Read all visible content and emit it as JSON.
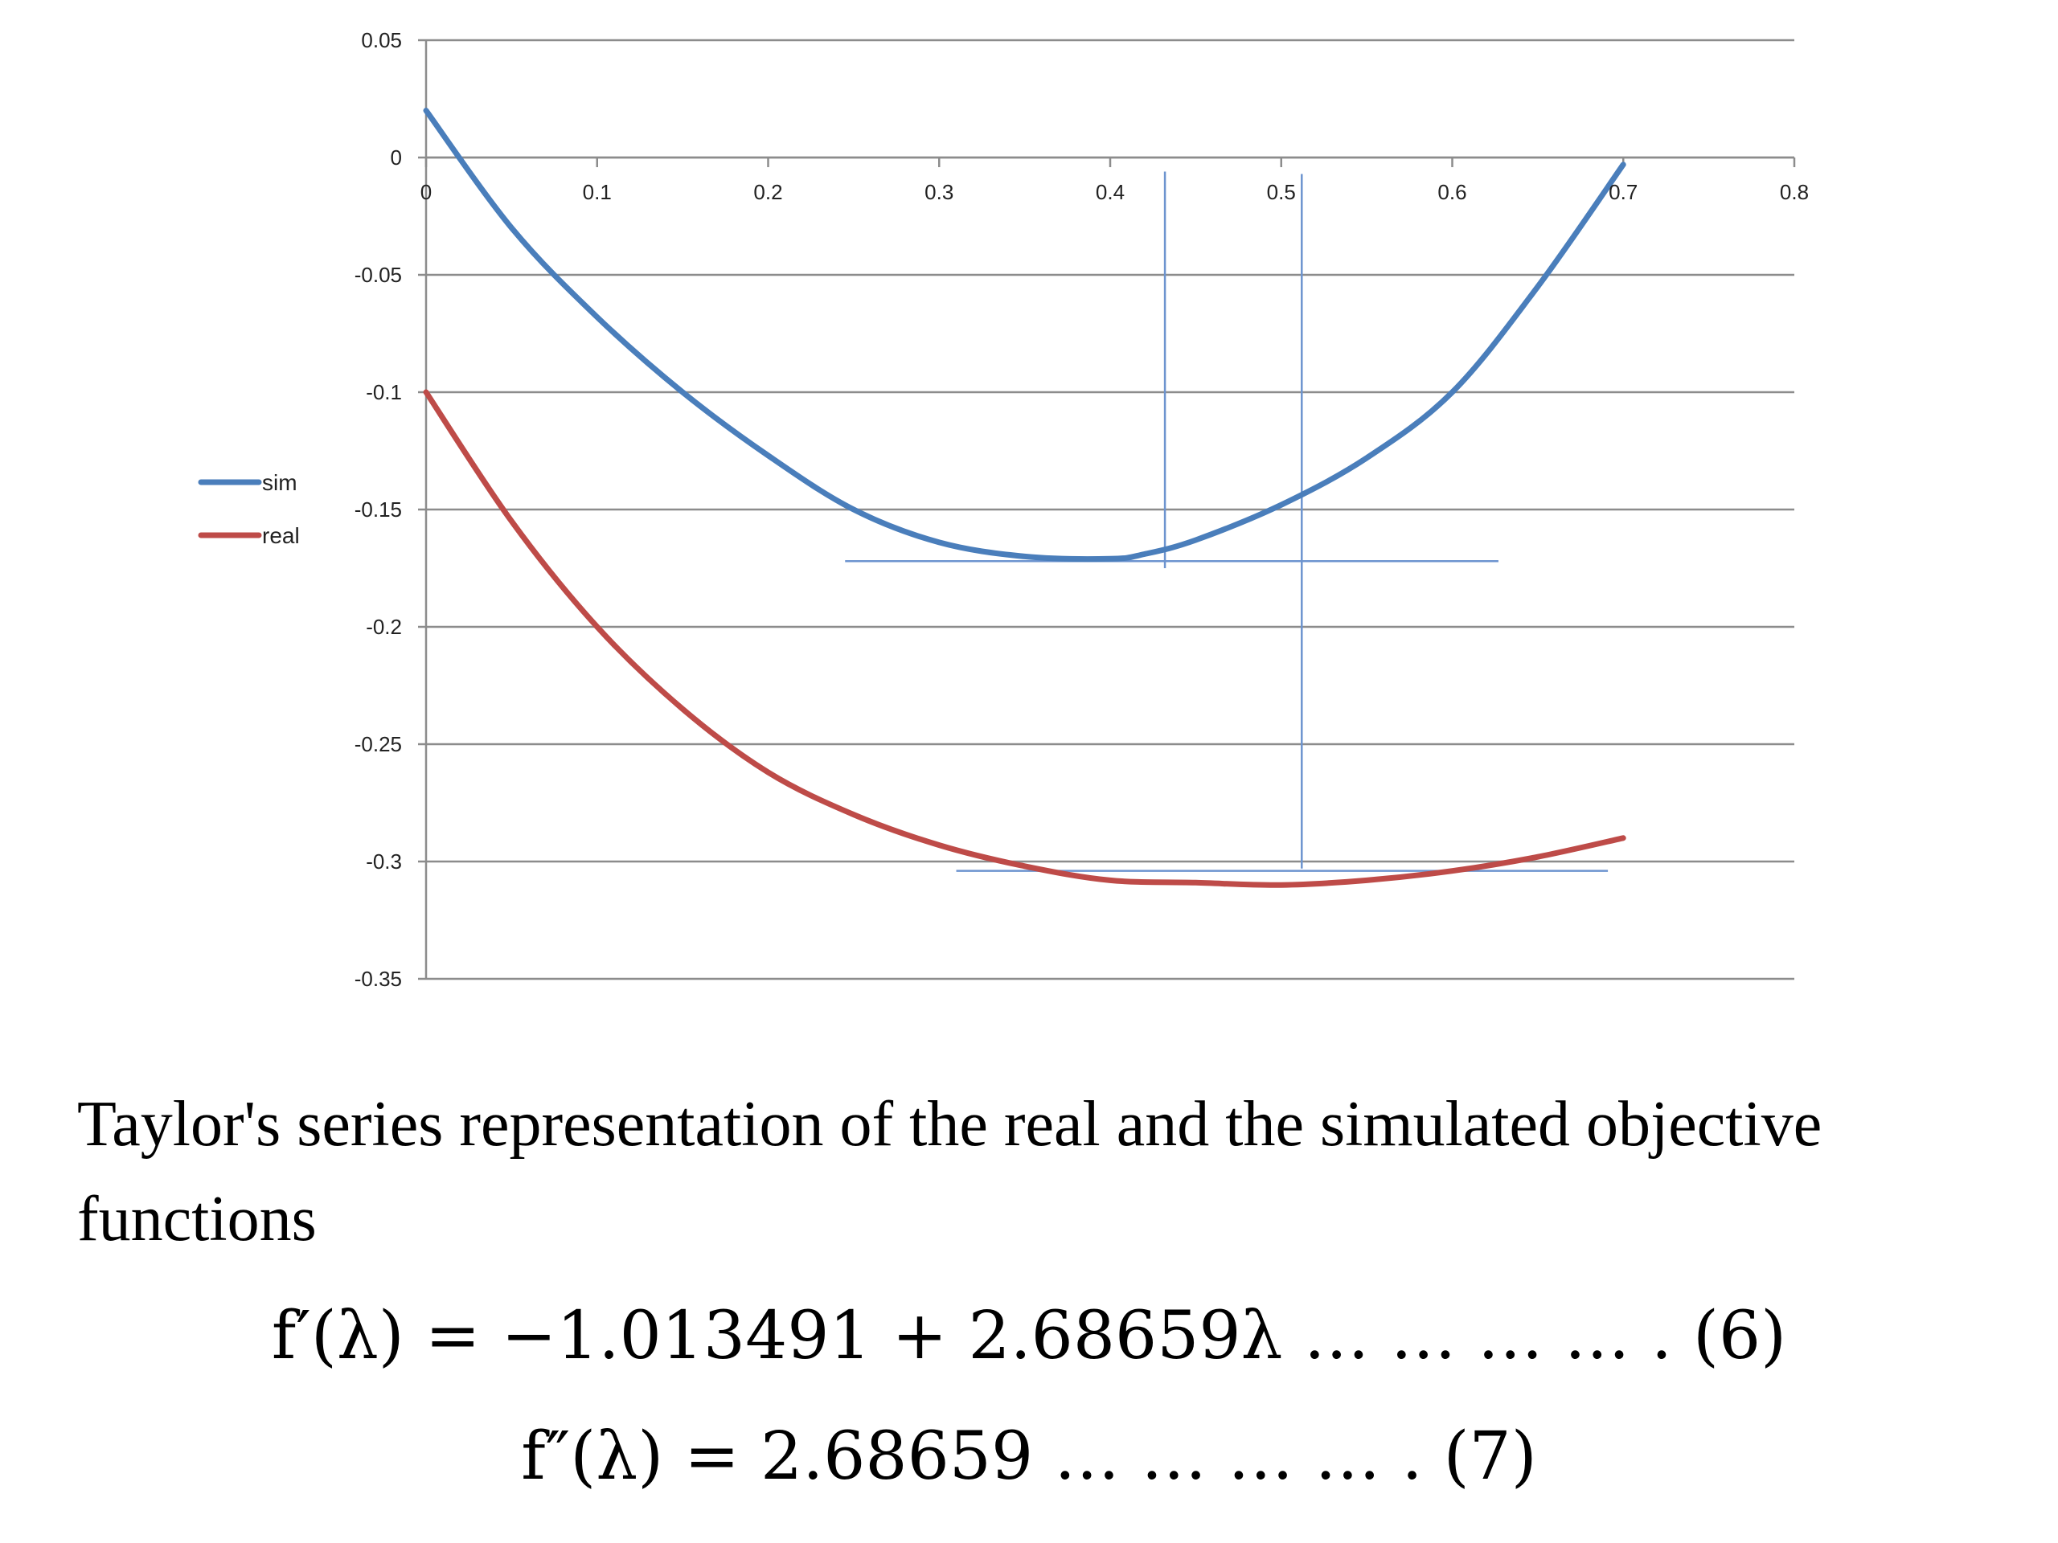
{
  "chart_data": {
    "type": "line",
    "title": "",
    "xlabel": "",
    "ylabel": "",
    "xlim": [
      0,
      0.8
    ],
    "ylim": [
      -0.35,
      0.05
    ],
    "x_ticks": [
      "0",
      "0.1",
      "0.2",
      "0.3",
      "0.4",
      "0.5",
      "0.6",
      "0.7",
      "0.8"
    ],
    "y_ticks": [
      "0.05",
      "0",
      "-0.05",
      "-0.1",
      "-0.15",
      "-0.2",
      "-0.25",
      "-0.3",
      "-0.35"
    ],
    "grid": "horizontal",
    "legend_position": "left",
    "series": [
      {
        "name": "sim",
        "color": "#4A7EBB",
        "x": [
          0,
          0.05,
          0.1,
          0.15,
          0.2,
          0.25,
          0.3,
          0.35,
          0.4,
          0.42,
          0.45,
          0.5,
          0.55,
          0.6,
          0.65,
          0.7
        ],
        "y": [
          0.02,
          -0.03,
          -0.068,
          -0.1,
          -0.127,
          -0.15,
          -0.164,
          -0.17,
          -0.171,
          -0.169,
          -0.163,
          -0.148,
          -0.128,
          -0.1,
          -0.055,
          -0.003
        ]
      },
      {
        "name": "real",
        "color": "#BE4B48",
        "x": [
          0,
          0.05,
          0.1,
          0.15,
          0.2,
          0.25,
          0.3,
          0.35,
          0.4,
          0.45,
          0.5,
          0.55,
          0.6,
          0.65,
          0.7
        ],
        "y": [
          -0.1,
          -0.155,
          -0.2,
          -0.235,
          -0.262,
          -0.28,
          -0.293,
          -0.302,
          -0.308,
          -0.309,
          -0.31,
          -0.308,
          -0.304,
          -0.298,
          -0.29
        ]
      }
    ],
    "reference_lines": [
      {
        "orientation": "vertical",
        "x": 0.432,
        "y_range": [
          -0.175,
          -0.006
        ]
      },
      {
        "orientation": "vertical",
        "x": 0.512,
        "y_range": [
          -0.303,
          -0.007
        ]
      },
      {
        "orientation": "horizontal",
        "y": -0.172,
        "x_range": [
          0.245,
          0.627
        ]
      },
      {
        "orientation": "horizontal",
        "y": -0.304,
        "x_range": [
          0.31,
          0.691
        ]
      }
    ]
  },
  "caption": "Taylor's series representation of the real and the simulated objective functions",
  "equations": {
    "eq6": "f′(λ) = −1.013491 + 2.68659λ … … … … . (6)",
    "eq7": "f″(λ) = 2.68659 … … … … . (7)"
  }
}
